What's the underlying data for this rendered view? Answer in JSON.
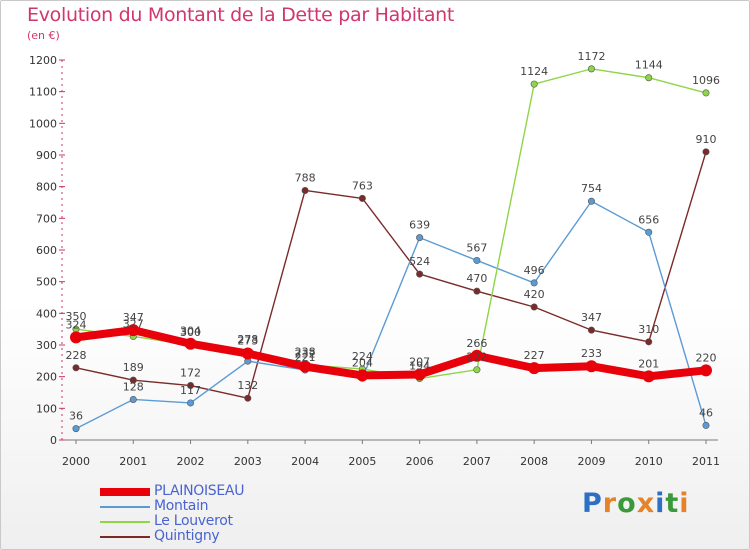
{
  "title": "Evolution du Montant de la Dette par Habitant",
  "unit": "(en €)",
  "brand": {
    "text": "Proxiti",
    "letters": [
      "P",
      "r",
      "o",
      "x",
      "i",
      "t",
      "i"
    ],
    "letter_colors": [
      "#2d6fc4",
      "#e5822a",
      "#3a9a3a",
      "#e5822a",
      "#2d6fc4",
      "#3a9a3a",
      "#e5822a"
    ]
  },
  "chart_data": {
    "type": "line",
    "title": "Evolution du Montant de la Dette par Habitant",
    "ylabel": "(en €)",
    "xlabel": "",
    "x": [
      "2000",
      "2001",
      "2002",
      "2003",
      "2004",
      "2005",
      "2006",
      "2007",
      "2008",
      "2009",
      "2010",
      "2011"
    ],
    "ylim": [
      0,
      1200
    ],
    "yticks": [
      0,
      100,
      200,
      300,
      400,
      500,
      600,
      700,
      800,
      900,
      1000,
      1100,
      1200
    ],
    "grid": false,
    "legend": "bottom-left",
    "series": [
      {
        "name": "PLAINOISEAU",
        "color": "#e8000b",
        "values": [
          324,
          347,
          304,
          273,
          232,
          204,
          207,
          266,
          227,
          233,
          201,
          220
        ],
        "labels": [
          "324",
          "347",
          "304",
          "273",
          "232",
          "204",
          "207",
          "266",
          "227",
          "233",
          "201",
          "220"
        ],
        "label_visible": [
          true,
          true,
          true,
          true,
          true,
          true,
          true,
          true,
          true,
          true,
          true,
          true
        ]
      },
      {
        "name": "Montain",
        "color": "#5b9bd5",
        "values": [
          36,
          128,
          117,
          249,
          221,
          195,
          639,
          567,
          496,
          754,
          656,
          46
        ],
        "labels": [
          "36",
          "128",
          "117",
          "",
          "221",
          "",
          "639",
          "567",
          "496",
          "754",
          "656",
          "46"
        ],
        "label_visible": [
          true,
          true,
          true,
          false,
          true,
          false,
          true,
          true,
          true,
          true,
          true,
          true
        ]
      },
      {
        "name": "Le Louverot",
        "color": "#8fd548",
        "values": [
          350,
          327,
          300,
          278,
          238,
          224,
          194,
          222,
          1124,
          1172,
          1144,
          1096
        ],
        "labels": [
          "350",
          "327",
          "300",
          "278",
          "238",
          "224",
          "194",
          "222",
          "1124",
          "1172",
          "1144",
          "1096"
        ],
        "label_visible": [
          true,
          true,
          true,
          true,
          true,
          true,
          true,
          true,
          true,
          true,
          true,
          true
        ]
      },
      {
        "name": "Quintigny",
        "color": "#7b2a2a",
        "values": [
          228,
          189,
          172,
          132,
          788,
          763,
          524,
          470,
          420,
          347,
          310,
          910
        ],
        "labels": [
          "228",
          "189",
          "172",
          "132",
          "788",
          "763",
          "524",
          "470",
          "420",
          "347",
          "310",
          "910"
        ],
        "label_visible": [
          true,
          true,
          true,
          true,
          true,
          true,
          true,
          true,
          true,
          true,
          true,
          true
        ]
      }
    ]
  }
}
